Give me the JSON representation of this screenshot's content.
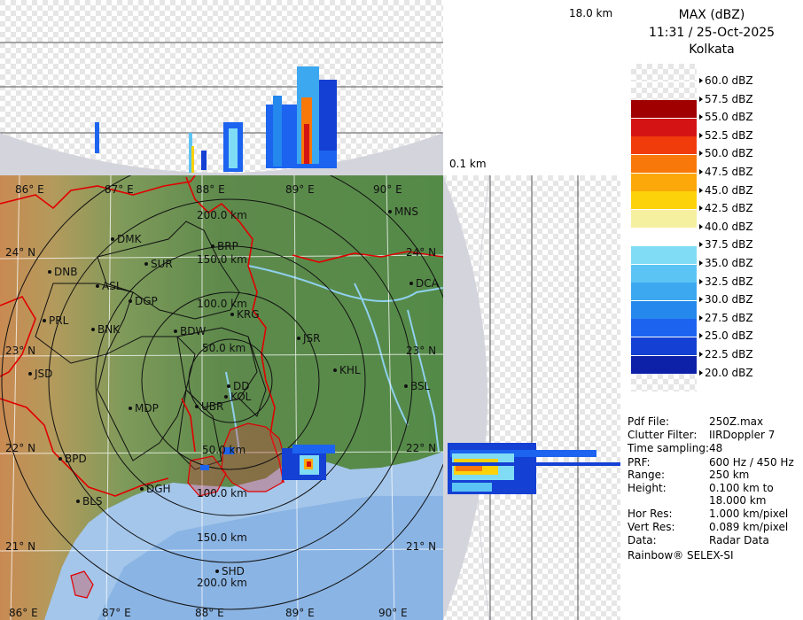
{
  "top_axis": {
    "max_height_label": "18.0 km",
    "min_height_label": "0.1 km"
  },
  "header": {
    "product": "MAX (dBZ)",
    "datetime": "11:31 / 25-Oct-2025",
    "station": "Kolkata"
  },
  "legend": [
    {
      "label": "60.0 dBZ",
      "color": "checker"
    },
    {
      "label": "57.5 dBZ",
      "color": "checker"
    },
    {
      "label": "55.0 dBZ",
      "color": "#a00000"
    },
    {
      "label": "52.5 dBZ",
      "color": "#d41414"
    },
    {
      "label": "50.0 dBZ",
      "color": "#f03c0a"
    },
    {
      "label": "47.5 dBZ",
      "color": "#f8780a"
    },
    {
      "label": "45.0 dBZ",
      "color": "#fca80a"
    },
    {
      "label": "42.5 dBZ",
      "color": "#fcd20a"
    },
    {
      "label": "40.0 dBZ",
      "color": "#f4f0a0"
    },
    {
      "label": "37.5 dBZ",
      "color": "#ffffff"
    },
    {
      "label": "35.0 dBZ",
      "color": "#80dcf4"
    },
    {
      "label": "32.5 dBZ",
      "color": "#5cc4f4"
    },
    {
      "label": "30.0 dBZ",
      "color": "#3ca8f0"
    },
    {
      "label": "27.5 dBZ",
      "color": "#2488ec"
    },
    {
      "label": "25.0 dBZ",
      "color": "#1c64f0"
    },
    {
      "label": "22.5 dBZ",
      "color": "#1440d4"
    },
    {
      "label": "20.0 dBZ",
      "color": "#0c20a8"
    },
    {
      "label": "",
      "color": "checker"
    }
  ],
  "info": [
    {
      "key": "Pdf File:",
      "value": "250Z.max"
    },
    {
      "key": "Clutter Filter:",
      "value": "IIRDoppler 7"
    },
    {
      "key": "Time sampling:",
      "value": "48"
    },
    {
      "key": "PRF:",
      "value": "600 Hz / 450 Hz"
    },
    {
      "key": "Range:",
      "value": "250 km"
    },
    {
      "key": "Height:",
      "value": "0.100 km to"
    },
    {
      "key": "",
      "value": "18.000 km"
    },
    {
      "key": "Hor Res:",
      "value": "1.000 km/pixel"
    },
    {
      "key": "Vert Res:",
      "value": "0.089 km/pixel"
    },
    {
      "key": "Data:",
      "value": "Radar Data"
    }
  ],
  "footer": "Rainbow® SELEX-SI",
  "map": {
    "lon_labels_top": [
      "86° E",
      "87° E",
      "88° E",
      "89° E",
      "90° E"
    ],
    "lon_labels_bottom": [
      "86° E",
      "87° E",
      "88° E",
      "89° E",
      "90° E"
    ],
    "lat_labels_left": [
      "24° N",
      "23° N",
      "22° N",
      "21° N"
    ],
    "lat_labels_right": [
      "24° N",
      "23° N",
      "22° N",
      "21° N"
    ],
    "range_rings": [
      "50.0 km",
      "100.0 km",
      "150.0 km",
      "200.0 km"
    ],
    "range_rings_south": [
      "50.0 km",
      "100.0 km",
      "150.0 km",
      "200.0 km"
    ],
    "cities": [
      {
        "name": "MNS"
      },
      {
        "name": "DMK"
      },
      {
        "name": "BRP"
      },
      {
        "name": "DNB"
      },
      {
        "name": "SUR"
      },
      {
        "name": "ASL"
      },
      {
        "name": "DCA"
      },
      {
        "name": "DGP"
      },
      {
        "name": "PRL"
      },
      {
        "name": "KRG"
      },
      {
        "name": "BNK"
      },
      {
        "name": "BDW"
      },
      {
        "name": "JSR"
      },
      {
        "name": "JSD"
      },
      {
        "name": "KHL"
      },
      {
        "name": "DD"
      },
      {
        "name": "KOL"
      },
      {
        "name": "BSL"
      },
      {
        "name": "MDP"
      },
      {
        "name": "UBR"
      },
      {
        "name": "BPD"
      },
      {
        "name": "DGH"
      },
      {
        "name": "BLS"
      },
      {
        "name": "SHD"
      }
    ]
  }
}
